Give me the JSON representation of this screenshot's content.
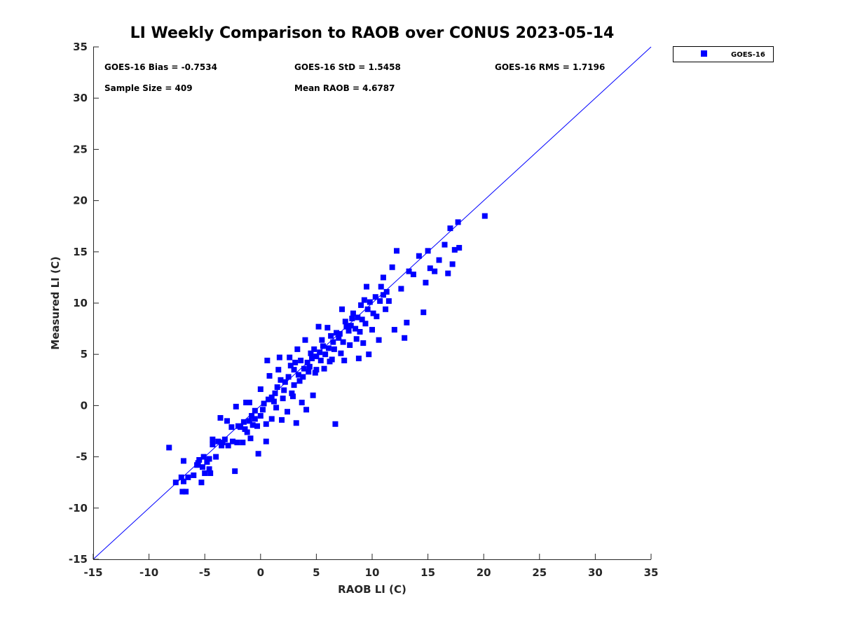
{
  "chart_data": {
    "type": "scatter",
    "title": "LI Weekly Comparison to RAOB over CONUS 2023-05-14",
    "xlabel": "RAOB LI (C)",
    "ylabel": "Measured LI (C)",
    "xlim": [
      -15,
      35
    ],
    "ylim": [
      -15,
      35
    ],
    "xticks": [
      "-15",
      "-10",
      "-5",
      "0",
      "5",
      "10",
      "15",
      "20",
      "25",
      "30",
      "35"
    ],
    "yticks": [
      "-15",
      "-10",
      "-5",
      "0",
      "5",
      "10",
      "15",
      "20",
      "25",
      "30",
      "35"
    ],
    "grid": false,
    "legend": {
      "position": "outside-top-right",
      "entries": [
        "GOES-16"
      ]
    },
    "annotations": [
      "GOES-16 Bias = -0.7534",
      "GOES-16 StD = 1.5458",
      "GOES-16 RMS = 1.7196",
      "Sample Size = 409",
      "Mean RAOB = 4.6787"
    ],
    "reference_line": {
      "name": "1:1 line",
      "from": [
        -15,
        -15
      ],
      "to": [
        35,
        35
      ],
      "color": "#0000ff"
    },
    "series": [
      {
        "name": "GOES-16",
        "color": "#0000ff",
        "marker": "square",
        "points": [
          [
            -8.2,
            -4.1
          ],
          [
            -7.6,
            -7.5
          ],
          [
            -7.1,
            -7.0
          ],
          [
            -6.9,
            -5.4
          ],
          [
            -7.0,
            -8.4
          ],
          [
            -6.7,
            -8.4
          ],
          [
            -6.9,
            -7.4
          ],
          [
            -6.5,
            -7.0
          ],
          [
            -6.0,
            -6.8
          ],
          [
            -5.7,
            -5.8
          ],
          [
            -5.5,
            -5.3
          ],
          [
            -5.3,
            -7.5
          ],
          [
            -5.1,
            -5.0
          ],
          [
            -5.0,
            -6.6
          ],
          [
            -4.8,
            -5.5
          ],
          [
            -4.6,
            -6.2
          ],
          [
            -4.5,
            -6.6
          ],
          [
            -4.3,
            -3.3
          ],
          [
            -4.3,
            -3.8
          ],
          [
            -4.0,
            -5.0
          ],
          [
            -3.8,
            -3.5
          ],
          [
            -3.6,
            -1.2
          ],
          [
            -3.5,
            -3.9
          ],
          [
            -3.2,
            -3.3
          ],
          [
            -3.0,
            -1.5
          ],
          [
            -2.9,
            -3.9
          ],
          [
            -2.6,
            -2.1
          ],
          [
            -2.5,
            -3.5
          ],
          [
            -2.3,
            -6.4
          ],
          [
            -2.2,
            -0.1
          ],
          [
            -2.0,
            -2.0
          ],
          [
            -1.8,
            -2.1
          ],
          [
            -1.6,
            -3.6
          ],
          [
            -1.5,
            -1.6
          ],
          [
            -1.3,
            0.3
          ],
          [
            -1.2,
            -2.6
          ],
          [
            -1.0,
            0.3
          ],
          [
            -0.9,
            -3.2
          ],
          [
            -0.8,
            -1.0
          ],
          [
            -0.5,
            -1.3
          ],
          [
            -0.3,
            -2.0
          ],
          [
            -0.2,
            -4.7
          ],
          [
            0.0,
            1.6
          ],
          [
            0.2,
            -0.4
          ],
          [
            0.5,
            -3.5
          ],
          [
            0.6,
            4.4
          ],
          [
            0.8,
            2.9
          ],
          [
            1.0,
            -1.3
          ],
          [
            1.2,
            0.4
          ],
          [
            1.5,
            1.8
          ],
          [
            1.6,
            3.5
          ],
          [
            1.7,
            4.7
          ],
          [
            1.9,
            -1.4
          ],
          [
            2.0,
            0.7
          ],
          [
            2.2,
            2.3
          ],
          [
            2.4,
            -0.6
          ],
          [
            2.6,
            4.7
          ],
          [
            2.8,
            1.2
          ],
          [
            3.0,
            3.5
          ],
          [
            3.2,
            -1.7
          ],
          [
            3.3,
            5.5
          ],
          [
            3.5,
            2.4
          ],
          [
            3.7,
            0.3
          ],
          [
            3.9,
            3.6
          ],
          [
            4.0,
            6.4
          ],
          [
            4.1,
            -0.4
          ],
          [
            4.3,
            3.3
          ],
          [
            4.5,
            5.1
          ],
          [
            4.7,
            1.0
          ],
          [
            5.0,
            3.5
          ],
          [
            5.2,
            7.7
          ],
          [
            5.4,
            4.4
          ],
          [
            5.6,
            5.8
          ],
          [
            6.0,
            7.6
          ],
          [
            6.2,
            4.3
          ],
          [
            6.5,
            6.2
          ],
          [
            6.7,
            -1.8
          ],
          [
            7.0,
            6.6
          ],
          [
            7.3,
            9.4
          ],
          [
            7.5,
            4.4
          ],
          [
            7.7,
            7.7
          ],
          [
            8.0,
            5.9
          ],
          [
            8.2,
            8.5
          ],
          [
            8.6,
            6.5
          ],
          [
            8.8,
            4.6
          ],
          [
            9.0,
            9.8
          ],
          [
            9.3,
            10.3
          ],
          [
            9.5,
            11.6
          ],
          [
            9.7,
            5.0
          ],
          [
            10.0,
            7.4
          ],
          [
            10.3,
            10.6
          ],
          [
            10.6,
            6.4
          ],
          [
            10.8,
            11.6
          ],
          [
            11.0,
            12.5
          ],
          [
            11.2,
            9.4
          ],
          [
            11.5,
            10.2
          ],
          [
            11.8,
            13.5
          ],
          [
            12.0,
            7.4
          ],
          [
            12.2,
            15.1
          ],
          [
            12.6,
            11.4
          ],
          [
            12.9,
            6.6
          ],
          [
            13.1,
            8.1
          ],
          [
            13.3,
            13.1
          ],
          [
            13.7,
            12.8
          ],
          [
            14.2,
            14.6
          ],
          [
            14.6,
            9.1
          ],
          [
            14.8,
            12.0
          ],
          [
            15.0,
            15.1
          ],
          [
            15.2,
            13.4
          ],
          [
            15.6,
            13.1
          ],
          [
            16.0,
            14.2
          ],
          [
            16.5,
            15.7
          ],
          [
            16.8,
            12.9
          ],
          [
            17.0,
            17.3
          ],
          [
            17.2,
            13.8
          ],
          [
            17.4,
            15.2
          ],
          [
            17.7,
            17.9
          ],
          [
            17.8,
            15.4
          ],
          [
            20.1,
            18.5
          ],
          [
            -1.0,
            -1.5
          ],
          [
            -0.5,
            -0.5
          ],
          [
            0.0,
            -1.0
          ],
          [
            0.3,
            0.2
          ],
          [
            0.5,
            -1.8
          ],
          [
            1.0,
            0.8
          ],
          [
            1.3,
            1.2
          ],
          [
            1.8,
            2.5
          ],
          [
            2.1,
            1.5
          ],
          [
            2.5,
            2.8
          ],
          [
            2.7,
            3.9
          ],
          [
            3.0,
            2.0
          ],
          [
            3.1,
            4.2
          ],
          [
            3.4,
            3.0
          ],
          [
            3.6,
            4.4
          ],
          [
            3.8,
            2.8
          ],
          [
            4.2,
            4.2
          ],
          [
            4.4,
            3.8
          ],
          [
            4.6,
            4.6
          ],
          [
            4.8,
            5.5
          ],
          [
            5.0,
            4.8
          ],
          [
            5.3,
            5.2
          ],
          [
            5.5,
            6.4
          ],
          [
            5.8,
            5.0
          ],
          [
            6.1,
            5.6
          ],
          [
            6.3,
            6.8
          ],
          [
            6.6,
            5.5
          ],
          [
            6.8,
            7.1
          ],
          [
            7.1,
            7.0
          ],
          [
            7.4,
            6.2
          ],
          [
            7.6,
            8.2
          ],
          [
            7.9,
            7.3
          ],
          [
            8.1,
            7.8
          ],
          [
            8.3,
            9.0
          ],
          [
            8.5,
            7.5
          ],
          [
            8.7,
            8.6
          ],
          [
            8.9,
            7.2
          ],
          [
            9.1,
            8.4
          ],
          [
            9.4,
            8.0
          ],
          [
            9.6,
            9.4
          ],
          [
            9.8,
            10.1
          ],
          [
            10.1,
            9.0
          ],
          [
            10.4,
            8.7
          ],
          [
            10.7,
            10.2
          ],
          [
            11.0,
            10.8
          ],
          [
            11.3,
            11.1
          ],
          [
            9.2,
            6.1
          ],
          [
            7.2,
            5.1
          ],
          [
            6.4,
            4.5
          ],
          [
            5.7,
            3.6
          ],
          [
            4.9,
            3.2
          ],
          [
            2.9,
            0.9
          ],
          [
            1.4,
            -0.2
          ],
          [
            0.7,
            0.6
          ],
          [
            -0.7,
            -1.9
          ],
          [
            -1.4,
            -2.3
          ],
          [
            -2.1,
            -3.6
          ],
          [
            -3.4,
            -3.6
          ],
          [
            -4.6,
            -5.2
          ],
          [
            -5.6,
            -5.6
          ],
          [
            -5.2,
            -6.0
          ]
        ]
      }
    ]
  }
}
